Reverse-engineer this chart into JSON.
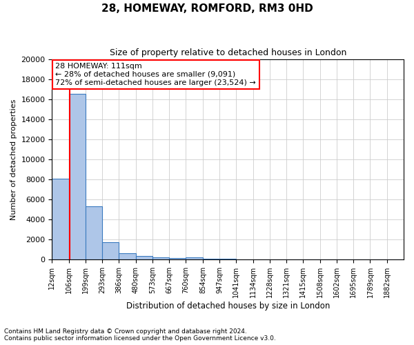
{
  "title1": "28, HOMEWAY, ROMFORD, RM3 0HD",
  "title2": "Size of property relative to detached houses in London",
  "xlabel": "Distribution of detached houses by size in London",
  "ylabel": "Number of detached properties",
  "bar_values": [
    8100,
    16500,
    5300,
    1750,
    650,
    370,
    230,
    150,
    200,
    100,
    60,
    40,
    30,
    20,
    15,
    10,
    8,
    5,
    4,
    3,
    2
  ],
  "bin_edges": [
    12,
    106,
    199,
    293,
    386,
    480,
    573,
    667,
    760,
    854,
    947,
    1041,
    1134,
    1228,
    1321,
    1415,
    1508,
    1602,
    1695,
    1789,
    1882
  ],
  "tick_labels": [
    "12sqm",
    "106sqm",
    "199sqm",
    "293sqm",
    "386sqm",
    "480sqm",
    "573sqm",
    "667sqm",
    "760sqm",
    "854sqm",
    "947sqm",
    "1041sqm",
    "1134sqm",
    "1228sqm",
    "1321sqm",
    "1415sqm",
    "1508sqm",
    "1602sqm",
    "1695sqm",
    "1789sqm",
    "1882sqm"
  ],
  "bar_color": "#aec6e8",
  "bar_edge_color": "#3a7abf",
  "red_line_x": 111,
  "annotation_title": "28 HOMEWAY: 111sqm",
  "annotation_line1": "← 28% of detached houses are smaller (9,091)",
  "annotation_line2": "72% of semi-detached houses are larger (23,524) →",
  "annotation_box_color": "#ff0000",
  "ylim": [
    0,
    20000
  ],
  "footnote1": "Contains HM Land Registry data © Crown copyright and database right 2024.",
  "footnote2": "Contains public sector information licensed under the Open Government Licence v3.0.",
  "background_color": "#ffffff",
  "grid_color": "#cccccc",
  "title1_fontsize": 11,
  "title2_fontsize": 9,
  "xlabel_fontsize": 8.5,
  "ylabel_fontsize": 8,
  "tick_fontsize": 7,
  "ytick_fontsize": 8,
  "footnote_fontsize": 6.5,
  "annotation_fontsize": 8
}
